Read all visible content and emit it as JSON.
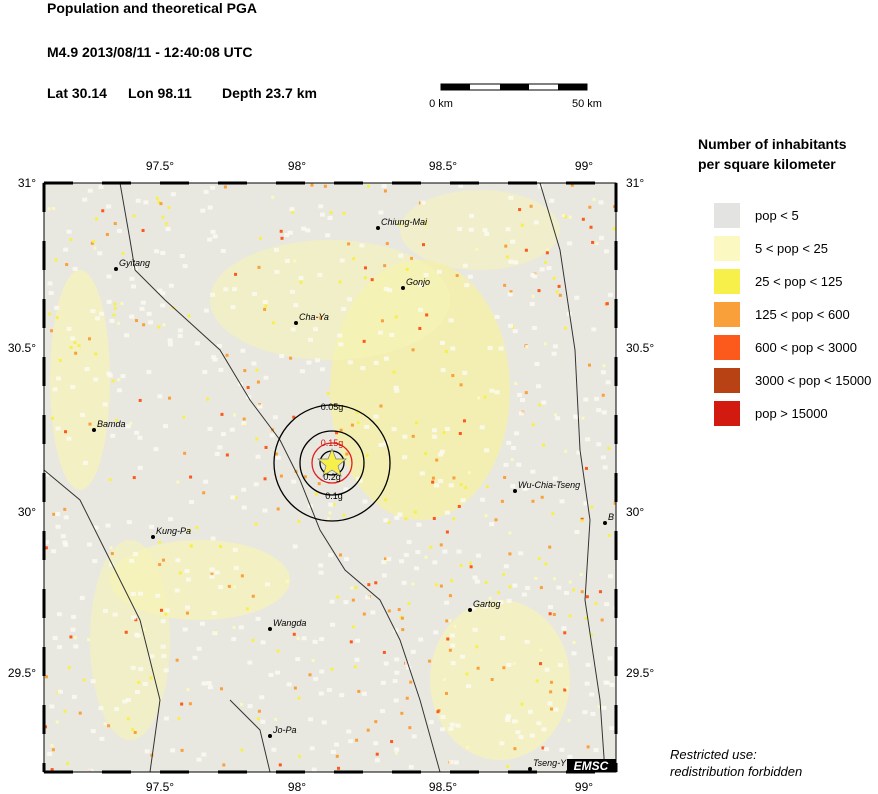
{
  "header": {
    "title": "Population and theoretical PGA",
    "event": "M4.9  2013/08/11 - 12:40:08 UTC",
    "lat": "Lat 30.14",
    "lon": "Lon  98.11",
    "depth": "Depth  23.7 km"
  },
  "scale_bar": {
    "start": "0 km",
    "end": "50 km"
  },
  "map": {
    "lon_labels": [
      "97.5°",
      "98°",
      "98.5°",
      "99°"
    ],
    "lat_labels": [
      "31°",
      "30.5°",
      "30°",
      "29.5°"
    ],
    "cities": [
      "Chiung-Mai",
      "Gyitang",
      "Gonjo",
      "Cha-Ya",
      "Bamda",
      "Wu-Chia-Tseng",
      "B",
      "Kung-Pa",
      "Gartog",
      "Wangda",
      "Jo-Pa",
      "Tseng-Y"
    ],
    "contours": [
      "0.05g",
      "0.15g",
      "0.2g",
      "0.1g"
    ],
    "badge": "EMSC"
  },
  "legend": {
    "title": [
      "Number of inhabitants",
      "per square kilometer"
    ],
    "items": [
      {
        "label": "pop < 5",
        "color": "#e3e3e1"
      },
      {
        "label": "5 < pop < 25",
        "color": "#fbf8c2"
      },
      {
        "label": "25 < pop < 125",
        "color": "#f8f04a"
      },
      {
        "label": "125 < pop < 600",
        "color": "#f9a03a"
      },
      {
        "label": "600 < pop < 3000",
        "color": "#fb5a1c"
      },
      {
        "label": "3000 < pop < 15000",
        "color": "#b84214"
      },
      {
        "label": "pop > 15000",
        "color": "#d21a10"
      }
    ]
  },
  "footer": [
    "Restricted use:",
    "redistribution forbidden"
  ]
}
